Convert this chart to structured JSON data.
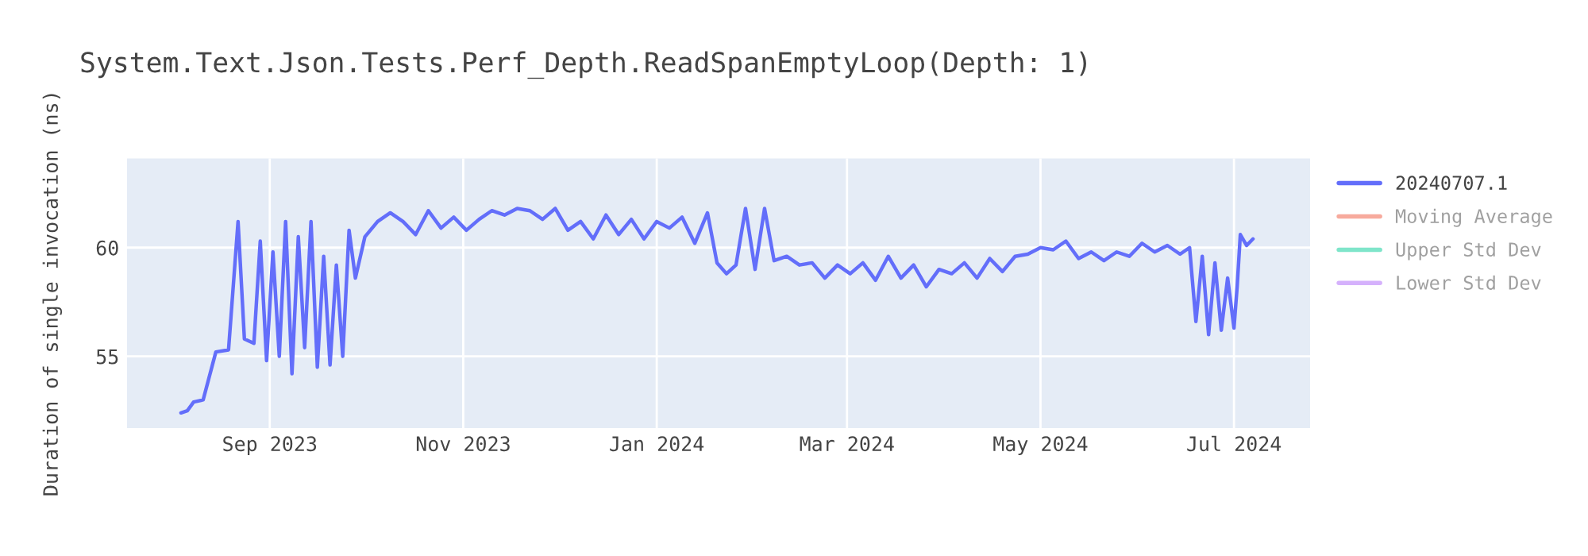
{
  "chart_data": {
    "type": "line",
    "title": "System.Text.Json.Tests.Perf_Depth.ReadSpanEmptyLoop(Depth: 1)",
    "ylabel": "Duration of single invocation (ns)",
    "x": [
      "2023-08-04",
      "2023-08-06",
      "2023-08-08",
      "2023-08-11",
      "2023-08-15",
      "2023-08-19",
      "2023-08-22",
      "2023-08-24",
      "2023-08-27",
      "2023-08-29",
      "2023-08-31",
      "2023-09-02",
      "2023-09-04",
      "2023-09-06",
      "2023-09-08",
      "2023-09-10",
      "2023-09-12",
      "2023-09-14",
      "2023-09-16",
      "2023-09-18",
      "2023-09-20",
      "2023-09-22",
      "2023-09-24",
      "2023-09-26",
      "2023-09-28",
      "2023-10-01",
      "2023-10-05",
      "2023-10-09",
      "2023-10-13",
      "2023-10-17",
      "2023-10-21",
      "2023-10-25",
      "2023-10-29",
      "2023-11-02",
      "2023-11-06",
      "2023-11-10",
      "2023-11-14",
      "2023-11-18",
      "2023-11-22",
      "2023-11-26",
      "2023-11-30",
      "2023-12-04",
      "2023-12-08",
      "2023-12-12",
      "2023-12-16",
      "2023-12-20",
      "2023-12-24",
      "2023-12-28",
      "2024-01-01",
      "2024-01-05",
      "2024-01-09",
      "2024-01-13",
      "2024-01-17",
      "2024-01-20",
      "2024-01-23",
      "2024-01-26",
      "2024-01-29",
      "2024-02-01",
      "2024-02-04",
      "2024-02-07",
      "2024-02-11",
      "2024-02-15",
      "2024-02-19",
      "2024-02-23",
      "2024-02-27",
      "2024-03-02",
      "2024-03-06",
      "2024-03-10",
      "2024-03-14",
      "2024-03-18",
      "2024-03-22",
      "2024-03-26",
      "2024-03-30",
      "2024-04-03",
      "2024-04-07",
      "2024-04-11",
      "2024-04-15",
      "2024-04-19",
      "2024-04-23",
      "2024-04-27",
      "2024-05-01",
      "2024-05-05",
      "2024-05-09",
      "2024-05-13",
      "2024-05-17",
      "2024-05-21",
      "2024-05-25",
      "2024-05-29",
      "2024-06-02",
      "2024-06-06",
      "2024-06-10",
      "2024-06-14",
      "2024-06-17",
      "2024-06-19",
      "2024-06-21",
      "2024-06-23",
      "2024-06-25",
      "2024-06-27",
      "2024-06-29",
      "2024-07-01",
      "2024-07-02",
      "2024-07-03",
      "2024-07-05",
      "2024-07-07"
    ],
    "series": [
      {
        "name": "20240707.1",
        "color": "#636efa",
        "values": [
          52.4,
          52.5,
          52.9,
          53.0,
          55.2,
          55.3,
          61.2,
          55.8,
          55.6,
          60.3,
          54.8,
          59.8,
          55.0,
          61.2,
          54.2,
          60.5,
          55.4,
          61.2,
          54.5,
          59.6,
          54.6,
          59.2,
          55.0,
          60.8,
          58.6,
          60.5,
          61.2,
          61.6,
          61.2,
          60.6,
          61.7,
          60.9,
          61.4,
          60.8,
          61.3,
          61.7,
          61.5,
          61.8,
          61.7,
          61.3,
          61.8,
          60.8,
          61.2,
          60.4,
          61.5,
          60.6,
          61.3,
          60.4,
          61.2,
          60.9,
          61.4,
          60.2,
          61.6,
          59.3,
          58.8,
          59.2,
          61.8,
          59.0,
          61.8,
          59.4,
          59.6,
          59.2,
          59.3,
          58.6,
          59.2,
          58.8,
          59.3,
          58.5,
          59.6,
          58.6,
          59.2,
          58.2,
          59.0,
          58.8,
          59.3,
          58.6,
          59.5,
          58.9,
          59.6,
          59.7,
          60.0,
          59.9,
          60.3,
          59.5,
          59.8,
          59.4,
          59.8,
          59.6,
          60.2,
          59.8,
          60.1,
          59.7,
          60.0,
          56.6,
          59.6,
          56.0,
          59.3,
          56.2,
          58.6,
          56.3,
          58.2,
          60.6,
          60.1,
          60.4
        ]
      },
      {
        "name": "Moving Average",
        "color": "#ef553b",
        "values": [
          null,
          null,
          null,
          null,
          null,
          null,
          null,
          null,
          null,
          null,
          null,
          null,
          null,
          null,
          null,
          null,
          null,
          null,
          null,
          null,
          null,
          null,
          null,
          null,
          null,
          null,
          null,
          null,
          null,
          null,
          null,
          null,
          null,
          null,
          null,
          null,
          null,
          null,
          null,
          null,
          null,
          null,
          null,
          null,
          null,
          null,
          null,
          null,
          null,
          null,
          null,
          null,
          null,
          null,
          null,
          null,
          null,
          null,
          null,
          null,
          null,
          null,
          null,
          null,
          null,
          null,
          null,
          null,
          null,
          null,
          null,
          null,
          null,
          null,
          null,
          null,
          null,
          null,
          null,
          null,
          null,
          null,
          null,
          null,
          null,
          null,
          null,
          null,
          null,
          null,
          null,
          null,
          null,
          null,
          null,
          null,
          null,
          null,
          null,
          null,
          null,
          null,
          null,
          null
        ]
      },
      {
        "name": "Upper Std Dev",
        "color": "#00cc96",
        "values": [
          null,
          null,
          null,
          null,
          null,
          null,
          null,
          null,
          null,
          null,
          null,
          null,
          null,
          null,
          null,
          null,
          null,
          null,
          null,
          null,
          null,
          null,
          null,
          null,
          null,
          null,
          null,
          null,
          null,
          null,
          null,
          null,
          null,
          null,
          null,
          null,
          null,
          null,
          null,
          null,
          null,
          null,
          null,
          null,
          null,
          null,
          null,
          null,
          null,
          null,
          null,
          null,
          null,
          null,
          null,
          null,
          null,
          null,
          null,
          null,
          null,
          null,
          null,
          null,
          null,
          null,
          null,
          null,
          null,
          null,
          null,
          null,
          null,
          null,
          null,
          null,
          null,
          null,
          null,
          null,
          null,
          null,
          null,
          null,
          null,
          null,
          null,
          null,
          null,
          null,
          null,
          null,
          null,
          null,
          null,
          null,
          null,
          null,
          null,
          null,
          null,
          null,
          null,
          null
        ]
      },
      {
        "name": "Lower Std Dev",
        "color": "#ab63fa",
        "values": [
          null,
          null,
          null,
          null,
          null,
          null,
          null,
          null,
          null,
          null,
          null,
          null,
          null,
          null,
          null,
          null,
          null,
          null,
          null,
          null,
          null,
          null,
          null,
          null,
          null,
          null,
          null,
          null,
          null,
          null,
          null,
          null,
          null,
          null,
          null,
          null,
          null,
          null,
          null,
          null,
          null,
          null,
          null,
          null,
          null,
          null,
          null,
          null,
          null,
          null,
          null,
          null,
          null,
          null,
          null,
          null,
          null,
          null,
          null,
          null,
          null,
          null,
          null,
          null,
          null,
          null,
          null,
          null,
          null,
          null,
          null,
          null,
          null,
          null,
          null,
          null,
          null,
          null,
          null,
          null,
          null,
          null,
          null,
          null,
          null,
          null,
          null,
          null,
          null,
          null,
          null,
          null,
          null,
          null,
          null,
          null,
          null,
          null,
          null,
          null,
          null,
          null,
          null,
          null
        ]
      }
    ],
    "xlim": [
      "2023-07-18",
      "2024-07-25"
    ],
    "xticks": [
      {
        "value": "2023-09-01",
        "label": "Sep 2023"
      },
      {
        "value": "2023-11-01",
        "label": "Nov 2023"
      },
      {
        "value": "2024-01-01",
        "label": "Jan 2024"
      },
      {
        "value": "2024-03-01",
        "label": "Mar 2024"
      },
      {
        "value": "2024-05-01",
        "label": "May 2024"
      },
      {
        "value": "2024-07-01",
        "label": "Jul 2024"
      }
    ],
    "ylim": [
      51.7,
      64.1
    ],
    "yticks": [
      55,
      60
    ],
    "grid": true,
    "legend": "top right"
  }
}
